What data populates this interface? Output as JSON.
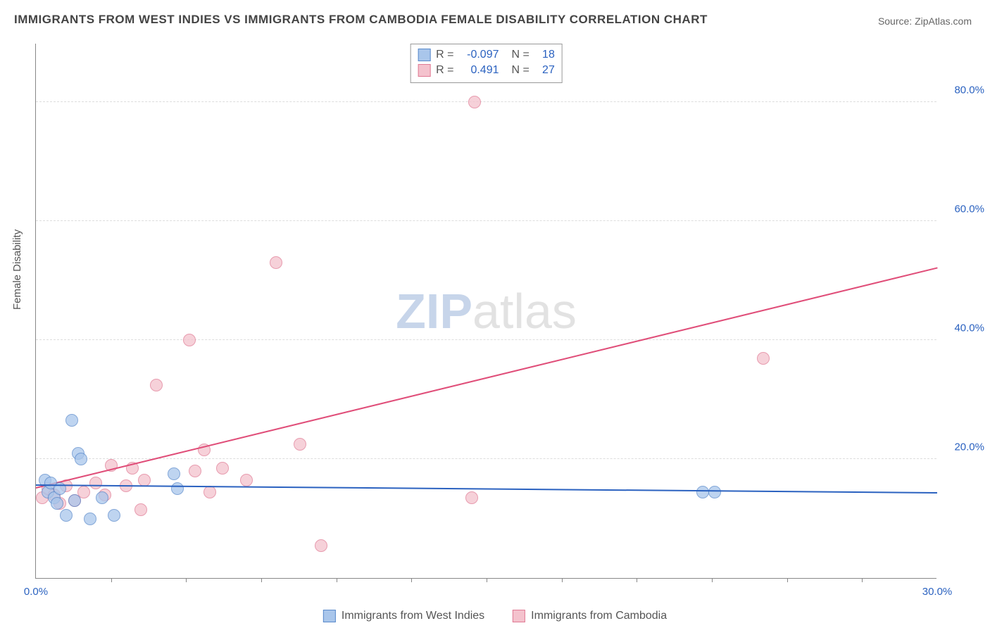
{
  "title": "IMMIGRANTS FROM WEST INDIES VS IMMIGRANTS FROM CAMBODIA FEMALE DISABILITY CORRELATION CHART",
  "source": "Source: ZipAtlas.com",
  "watermark_zip": "ZIP",
  "watermark_atlas": "atlas",
  "ylabel": "Female Disability",
  "chart": {
    "type": "scatter",
    "xlim": [
      0,
      30
    ],
    "ylim": [
      0,
      90
    ],
    "xticks": [
      0.0,
      30.0
    ],
    "yticks": [
      20.0,
      40.0,
      60.0,
      80.0
    ],
    "grid_color": "#dddddd",
    "axis_color": "#888888",
    "background": "#ffffff",
    "marker_radius": 9,
    "marker_stroke_width": 1.4,
    "line_width": 2.2
  },
  "series": {
    "west_indies": {
      "label": "Immigrants from West Indies",
      "fill": "#a9c6eb",
      "stroke": "#5a8acb",
      "line_color": "#2b62c0",
      "R": "-0.097",
      "N": "18",
      "trend": {
        "x1": 0,
        "y1": 15.5,
        "x2": 30,
        "y2": 14.2
      },
      "points": [
        [
          0.3,
          16.5
        ],
        [
          0.4,
          14.5
        ],
        [
          0.5,
          16.0
        ],
        [
          0.6,
          13.5
        ],
        [
          0.8,
          15.0
        ],
        [
          1.0,
          10.5
        ],
        [
          1.2,
          26.5
        ],
        [
          1.3,
          13.0
        ],
        [
          1.4,
          21.0
        ],
        [
          1.5,
          20.0
        ],
        [
          1.8,
          10.0
        ],
        [
          2.2,
          13.5
        ],
        [
          2.6,
          10.5
        ],
        [
          4.6,
          17.5
        ],
        [
          4.7,
          15.0
        ],
        [
          22.2,
          14.5
        ],
        [
          22.6,
          14.5
        ],
        [
          0.7,
          12.5
        ]
      ]
    },
    "cambodia": {
      "label": "Immigrants from Cambodia",
      "fill": "#f4c2cd",
      "stroke": "#e07a94",
      "line_color": "#e04e79",
      "R": "0.491",
      "N": "27",
      "trend": {
        "x1": 0,
        "y1": 15.0,
        "x2": 30,
        "y2": 52.0
      },
      "points": [
        [
          0.2,
          13.5
        ],
        [
          0.4,
          15.0
        ],
        [
          0.6,
          14.0
        ],
        [
          0.8,
          12.5
        ],
        [
          1.0,
          15.5
        ],
        [
          1.3,
          13.0
        ],
        [
          1.6,
          14.5
        ],
        [
          2.0,
          16.0
        ],
        [
          2.3,
          14.0
        ],
        [
          2.5,
          19.0
        ],
        [
          3.0,
          15.5
        ],
        [
          3.2,
          18.5
        ],
        [
          3.5,
          11.5
        ],
        [
          3.6,
          16.5
        ],
        [
          4.0,
          32.5
        ],
        [
          5.1,
          40.0
        ],
        [
          5.3,
          18.0
        ],
        [
          5.6,
          21.5
        ],
        [
          5.8,
          14.5
        ],
        [
          6.2,
          18.5
        ],
        [
          7.0,
          16.5
        ],
        [
          8.0,
          53.0
        ],
        [
          8.8,
          22.5
        ],
        [
          9.5,
          5.5
        ],
        [
          14.5,
          13.5
        ],
        [
          14.6,
          80.0
        ],
        [
          24.2,
          37.0
        ]
      ]
    }
  },
  "stat_labels": {
    "R": "R =",
    "N": "N ="
  }
}
